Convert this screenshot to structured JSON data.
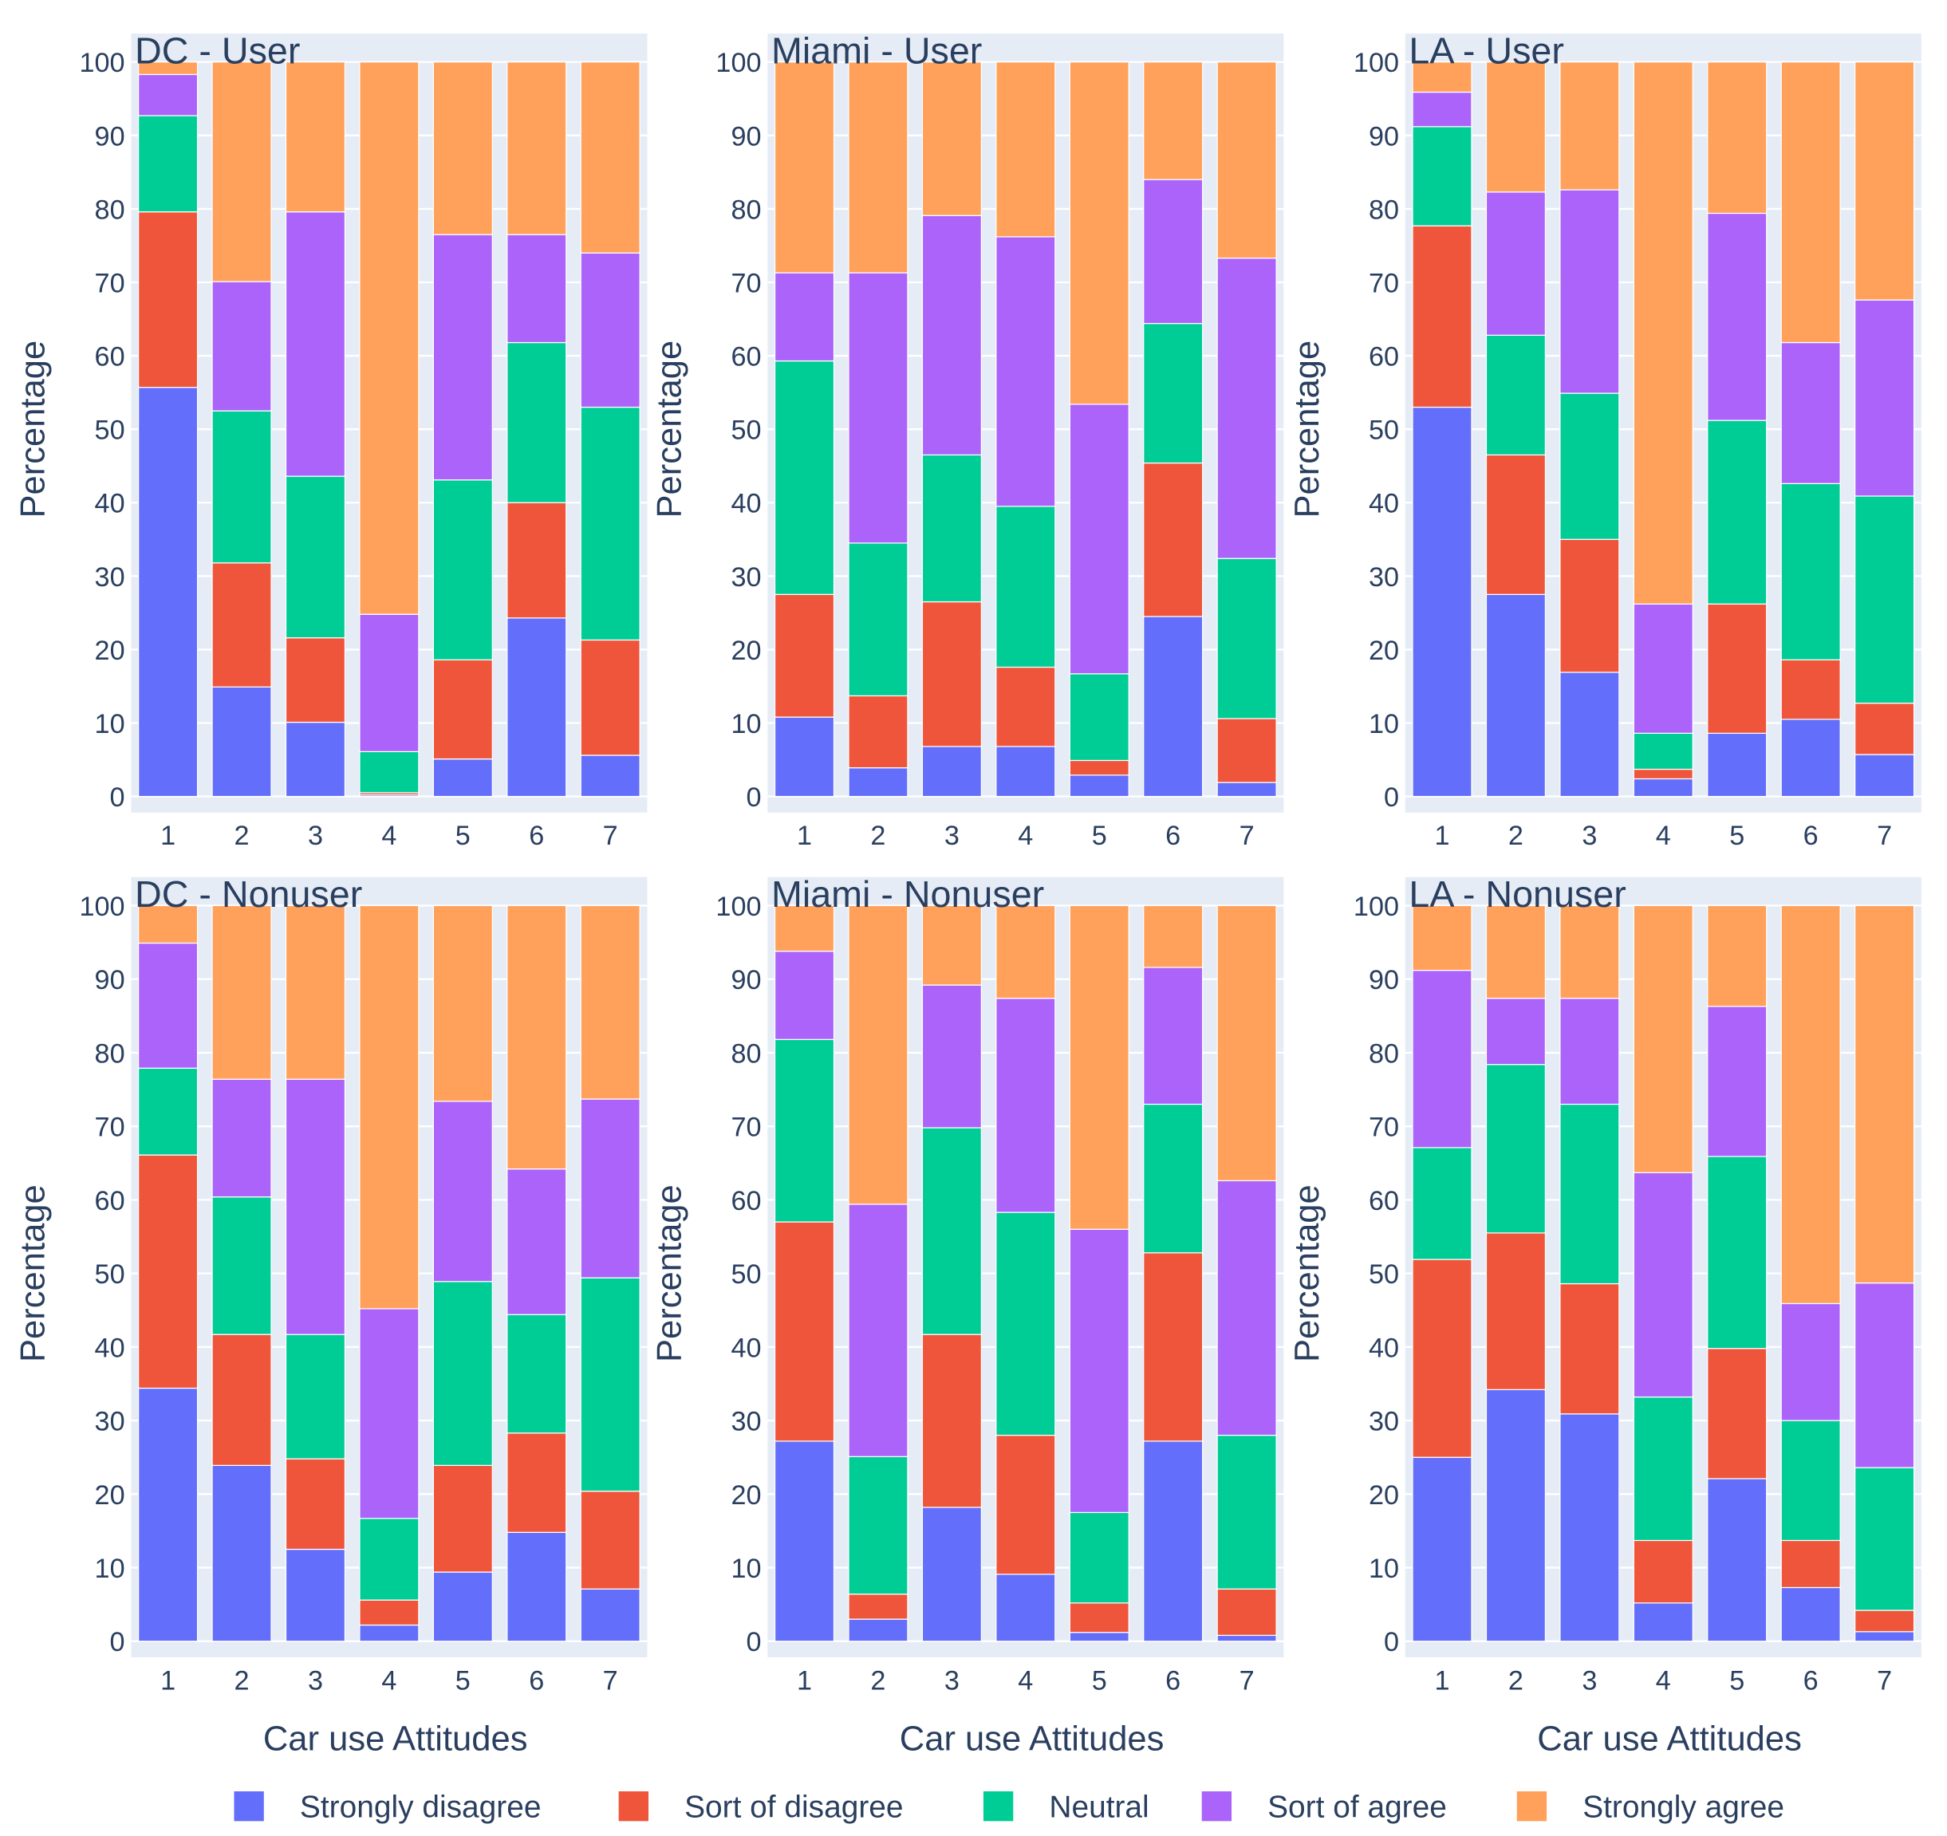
{
  "chart_data": [
    {
      "type": "bar",
      "stacked": true,
      "title": "DC - User",
      "xlabel": "",
      "ylabel": "Percentage",
      "ylim": [
        0,
        100
      ],
      "categories": [
        "1",
        "2",
        "3",
        "4",
        "5",
        "6",
        "7"
      ],
      "series": [
        {
          "name": "Strongly disagree",
          "values": [
            55.7,
            14.9,
            10.1,
            0.2,
            5.1,
            24.3,
            5.6
          ]
        },
        {
          "name": "Sort of disagree",
          "values": [
            23.9,
            16.9,
            11.5,
            0.3,
            13.5,
            15.7,
            15.7
          ]
        },
        {
          "name": "Neutral",
          "values": [
            13.1,
            20.7,
            22.0,
            5.6,
            24.5,
            21.8,
            31.7
          ]
        },
        {
          "name": "Sort of agree",
          "values": [
            5.6,
            17.6,
            36.0,
            18.7,
            33.4,
            14.7,
            21.0
          ]
        },
        {
          "name": "Strongly agree",
          "values": [
            1.7,
            29.9,
            20.4,
            75.2,
            23.5,
            23.5,
            26.0
          ]
        }
      ]
    },
    {
      "type": "bar",
      "stacked": true,
      "title": "Miami - User",
      "xlabel": "",
      "ylabel": "Percentage",
      "ylim": [
        0,
        100
      ],
      "categories": [
        "1",
        "2",
        "3",
        "4",
        "5",
        "6",
        "7"
      ],
      "series": [
        {
          "name": "Strongly disagree",
          "values": [
            10.8,
            3.9,
            6.8,
            6.8,
            2.9,
            24.5,
            1.9
          ]
        },
        {
          "name": "Sort of disagree",
          "values": [
            16.7,
            9.8,
            19.7,
            10.8,
            2.0,
            20.9,
            8.7
          ]
        },
        {
          "name": "Neutral",
          "values": [
            31.8,
            20.8,
            20.0,
            21.9,
            11.8,
            19.0,
            21.8
          ]
        },
        {
          "name": "Sort of agree",
          "values": [
            12.0,
            36.8,
            32.6,
            36.7,
            36.7,
            19.6,
            40.9
          ]
        },
        {
          "name": "Strongly agree",
          "values": [
            28.7,
            28.7,
            20.9,
            23.8,
            46.6,
            16.0,
            26.7
          ]
        }
      ]
    },
    {
      "type": "bar",
      "stacked": true,
      "title": "LA - User",
      "xlabel": "",
      "ylabel": "Percentage",
      "ylim": [
        0,
        100
      ],
      "categories": [
        "1",
        "2",
        "3",
        "4",
        "5",
        "6",
        "7"
      ],
      "series": [
        {
          "name": "Strongly disagree",
          "values": [
            53.0,
            27.5,
            16.9,
            2.4,
            8.6,
            10.5,
            5.7
          ]
        },
        {
          "name": "Sort of disagree",
          "values": [
            24.7,
            19.0,
            18.1,
            1.3,
            17.6,
            8.1,
            7.0
          ]
        },
        {
          "name": "Neutral",
          "values": [
            13.5,
            16.3,
            19.9,
            4.9,
            25.0,
            24.0,
            28.2
          ]
        },
        {
          "name": "Sort of agree",
          "values": [
            4.7,
            19.5,
            27.7,
            17.6,
            28.2,
            19.2,
            26.7
          ]
        },
        {
          "name": "Strongly agree",
          "values": [
            4.1,
            17.7,
            17.4,
            73.8,
            20.6,
            38.2,
            32.4
          ]
        }
      ]
    },
    {
      "type": "bar",
      "stacked": true,
      "title": "DC - Nonuser",
      "xlabel": "Car use Attitudes",
      "ylabel": "Percentage",
      "ylim": [
        0,
        100
      ],
      "categories": [
        "1",
        "2",
        "3",
        "4",
        "5",
        "6",
        "7"
      ],
      "series": [
        {
          "name": "Strongly disagree",
          "values": [
            34.4,
            23.9,
            12.5,
            2.2,
            9.4,
            14.8,
            7.1
          ]
        },
        {
          "name": "Sort of disagree",
          "values": [
            31.7,
            17.8,
            12.3,
            3.4,
            14.5,
            13.5,
            13.3
          ]
        },
        {
          "name": "Neutral",
          "values": [
            11.8,
            18.7,
            16.9,
            11.1,
            25.0,
            16.1,
            29.0
          ]
        },
        {
          "name": "Sort of agree",
          "values": [
            17.0,
            16.0,
            34.7,
            28.5,
            24.5,
            19.8,
            24.3
          ]
        },
        {
          "name": "Strongly agree",
          "values": [
            5.1,
            23.6,
            23.6,
            54.8,
            26.6,
            35.8,
            26.3
          ]
        }
      ]
    },
    {
      "type": "bar",
      "stacked": true,
      "title": "Miami - Nonuser",
      "xlabel": "Car use Attitudes",
      "ylabel": "Percentage",
      "ylim": [
        0,
        100
      ],
      "categories": [
        "1",
        "2",
        "3",
        "4",
        "5",
        "6",
        "7"
      ],
      "series": [
        {
          "name": "Strongly disagree",
          "values": [
            27.2,
            3.0,
            18.2,
            9.1,
            1.2,
            27.2,
            0.8
          ]
        },
        {
          "name": "Sort of disagree",
          "values": [
            29.8,
            3.4,
            23.5,
            18.9,
            4.0,
            25.6,
            6.3
          ]
        },
        {
          "name": "Neutral",
          "values": [
            24.8,
            18.7,
            28.1,
            30.3,
            12.3,
            20.2,
            20.9
          ]
        },
        {
          "name": "Sort of agree",
          "values": [
            12.0,
            34.3,
            19.4,
            29.1,
            38.5,
            18.6,
            34.6
          ]
        },
        {
          "name": "Strongly agree",
          "values": [
            6.2,
            40.6,
            10.8,
            12.6,
            44.0,
            8.4,
            37.4
          ]
        }
      ]
    },
    {
      "type": "bar",
      "stacked": true,
      "title": "LA - Nonuser",
      "xlabel": "Car use Attitudes",
      "ylabel": "Percentage",
      "ylim": [
        0,
        100
      ],
      "categories": [
        "1",
        "2",
        "3",
        "4",
        "5",
        "6",
        "7"
      ],
      "series": [
        {
          "name": "Strongly disagree",
          "values": [
            25.0,
            34.2,
            30.9,
            5.2,
            22.1,
            7.3,
            1.3
          ]
        },
        {
          "name": "Sort of disagree",
          "values": [
            26.9,
            21.3,
            17.7,
            8.5,
            17.7,
            6.4,
            2.9
          ]
        },
        {
          "name": "Neutral",
          "values": [
            15.2,
            22.9,
            24.4,
            19.5,
            26.1,
            16.3,
            19.4
          ]
        },
        {
          "name": "Sort of agree",
          "values": [
            24.1,
            9.0,
            14.4,
            30.5,
            20.4,
            15.9,
            25.1
          ]
        },
        {
          "name": "Strongly agree",
          "values": [
            8.8,
            12.6,
            12.6,
            36.3,
            13.7,
            54.1,
            51.3
          ]
        }
      ]
    }
  ],
  "yticks": [
    "0",
    "10",
    "20",
    "30",
    "40",
    "50",
    "60",
    "70",
    "80",
    "90",
    "100"
  ],
  "grid": true,
  "legend": {
    "placement": "bottom",
    "items": [
      "Strongly disagree",
      "Sort of disagree",
      "Neutral",
      "Sort of agree",
      "Strongly agree"
    ]
  },
  "colors": {
    "Strongly disagree": "#636efa",
    "Sort of disagree": "#ef553b",
    "Neutral": "#00cc96",
    "Sort of agree": "#ab63fa",
    "Strongly agree": "#ffa15a",
    "plot_bg": "#e5ecf6",
    "text": "#2a3f5f"
  }
}
